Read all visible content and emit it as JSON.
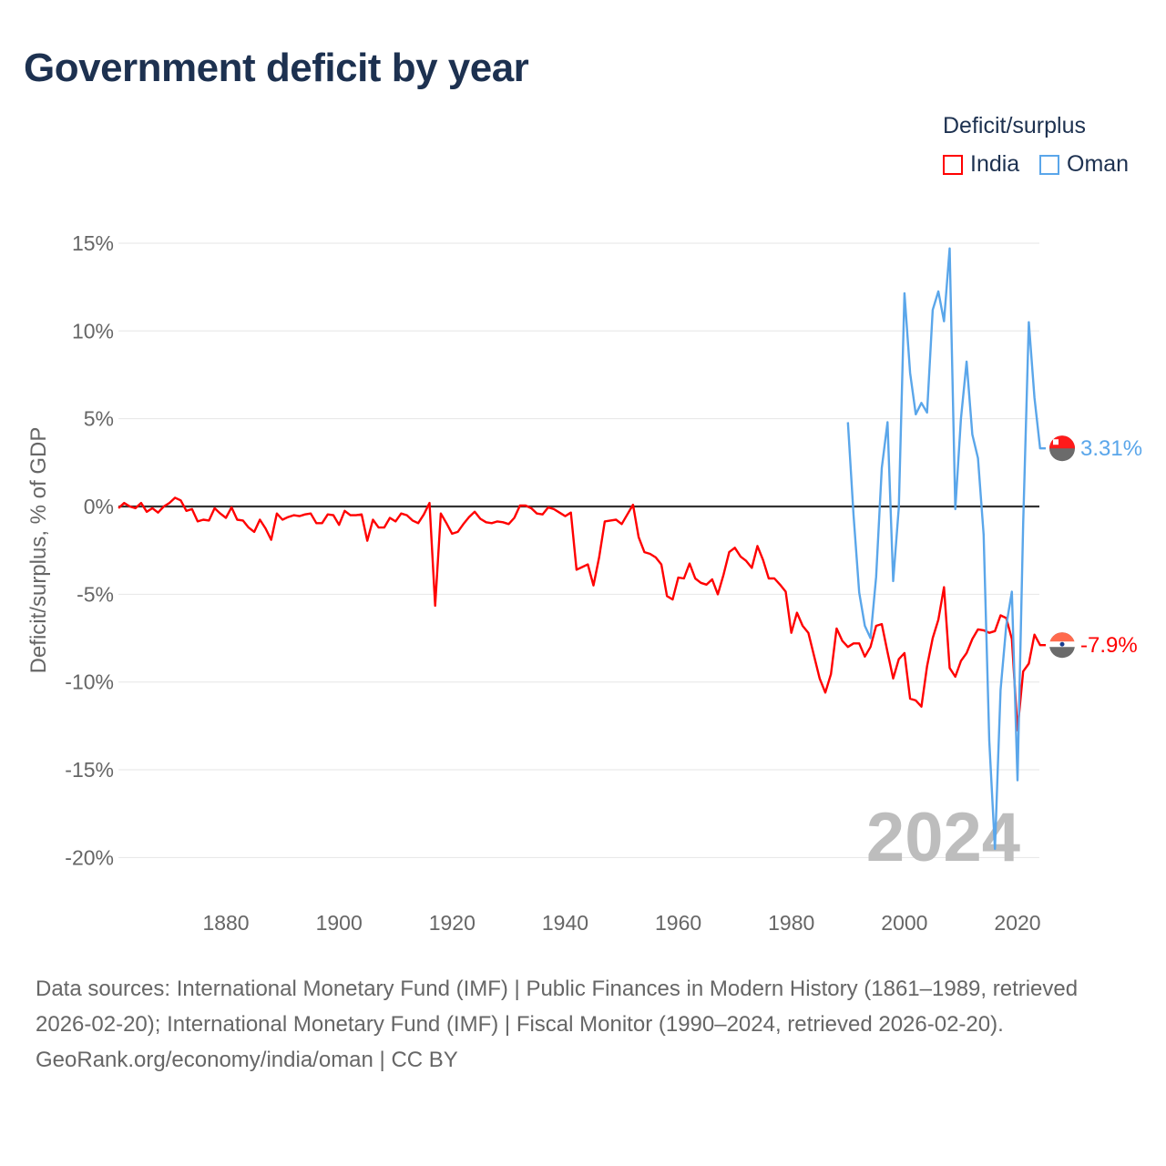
{
  "title": "Government deficit by year",
  "legend": {
    "title": "Deficit/surplus",
    "items": [
      {
        "name": "India",
        "color": "#ff0000"
      },
      {
        "name": "Oman",
        "color": "#5aa6ea"
      }
    ]
  },
  "footer": {
    "sources": "Data sources: International Monetary Fund (IMF) | Public Finances in Modern History (1861–1989, retrieved 2026-02-20); International Monetary Fund (IMF) | Fiscal Monitor (1990–2024, retrieved 2026-02-20).",
    "credit": "GeoRank.org/economy/india/oman | CC BY"
  },
  "chart_data": {
    "type": "line",
    "title": "Government deficit by year",
    "xlabel": "",
    "ylabel": "Deficit/surplus, % of GDP",
    "xlim": [
      1861,
      2024
    ],
    "ylim": [
      -20,
      15
    ],
    "x_ticks": [
      "1880",
      "1900",
      "1920",
      "1940",
      "1960",
      "1980",
      "2000",
      "2020"
    ],
    "y_ticks": [
      {
        "v": 15,
        "label": "15%"
      },
      {
        "v": 10,
        "label": "10%"
      },
      {
        "v": 5,
        "label": "5%"
      },
      {
        "v": 0,
        "label": "0%"
      },
      {
        "v": -5,
        "label": "-5%"
      },
      {
        "v": -10,
        "label": "-10%"
      },
      {
        "v": -15,
        "label": "-15%"
      },
      {
        "v": -20,
        "label": "-20%"
      }
    ],
    "current_year": "2024",
    "grid": true,
    "legend_position": "top-right",
    "series": [
      {
        "name": "India",
        "color": "#ff0000",
        "start_year": 1861,
        "end_label": "-7.9%",
        "values": [
          -0.1,
          0.2,
          0,
          -0.1,
          0.2,
          -0.3,
          -0.1,
          -0.35,
          0,
          0.2,
          0.5,
          0.35,
          -0.25,
          -0.15,
          -0.85,
          -0.75,
          -0.8,
          -0.1,
          -0.4,
          -0.65,
          -0.05,
          -0.75,
          -0.8,
          -1.2,
          -1.45,
          -0.75,
          -1.25,
          -1.9,
          -0.4,
          -0.75,
          -0.6,
          -0.5,
          -0.55,
          -0.45,
          -0.4,
          -0.95,
          -0.95,
          -0.45,
          -0.5,
          -1.05,
          -0.25,
          -0.5,
          -0.5,
          -0.45,
          -1.95,
          -0.75,
          -1.2,
          -1.2,
          -0.65,
          -0.85,
          -0.4,
          -0.5,
          -0.8,
          -0.95,
          -0.45,
          0.2,
          -5.65,
          -0.4,
          -0.95,
          -1.55,
          -1.45,
          -1.0,
          -0.6,
          -0.3,
          -0.7,
          -0.9,
          -0.95,
          -0.85,
          -0.9,
          -1.0,
          -0.65,
          0.05,
          0.05,
          -0.1,
          -0.4,
          -0.45,
          -0.05,
          -0.15,
          -0.35,
          -0.55,
          -0.35,
          -3.6,
          -3.45,
          -3.3,
          -4.5,
          -2.9,
          -0.85,
          -0.8,
          -0.75,
          -1.0,
          -0.45,
          0.1,
          -1.75,
          -2.6,
          -2.7,
          -2.9,
          -3.3,
          -5.1,
          -5.3,
          -4.05,
          -4.1,
          -3.25,
          -4.1,
          -4.35,
          -4.45,
          -4.15,
          -5.0,
          -3.9,
          -2.6,
          -2.35,
          -2.85,
          -3.1,
          -3.5,
          -2.25,
          -3.05,
          -4.1,
          -4.1,
          -4.45,
          -4.85,
          -7.2,
          -6.05,
          -6.8,
          -7.2,
          -8.5,
          -9.8,
          -10.6,
          -9.55,
          -6.95,
          -7.65,
          -8.0,
          -7.8,
          -7.8,
          -8.55,
          -8.0,
          -6.8,
          -6.7,
          -8.3,
          -9.8,
          -8.7,
          -8.35,
          -10.95,
          -11.05,
          -11.4,
          -9.1,
          -7.5,
          -6.45,
          -4.6,
          -9.2,
          -9.7,
          -8.8,
          -8.35,
          -7.55,
          -7.0,
          -7.05,
          -7.2,
          -7.1,
          -6.2,
          -6.35,
          -7.55,
          -12.75,
          -9.4,
          -8.95,
          -7.3,
          -7.9
        ]
      },
      {
        "name": "Oman",
        "color": "#5aa6ea",
        "start_year": 1990,
        "end_label": "3.31%",
        "values": [
          4.8,
          -0.5,
          -4.9,
          -6.8,
          -7.5,
          -4.0,
          2.2,
          4.8,
          -4.25,
          -0.05,
          12.15,
          7.6,
          5.25,
          5.9,
          5.35,
          11.2,
          12.25,
          10.55,
          14.7,
          -0.15,
          5.0,
          8.25,
          4.1,
          2.75,
          -1.6,
          -13.35,
          -19.5,
          -10.45,
          -6.8,
          -4.85,
          -15.6,
          -1.0,
          10.5,
          6.2,
          3.31
        ]
      }
    ]
  }
}
